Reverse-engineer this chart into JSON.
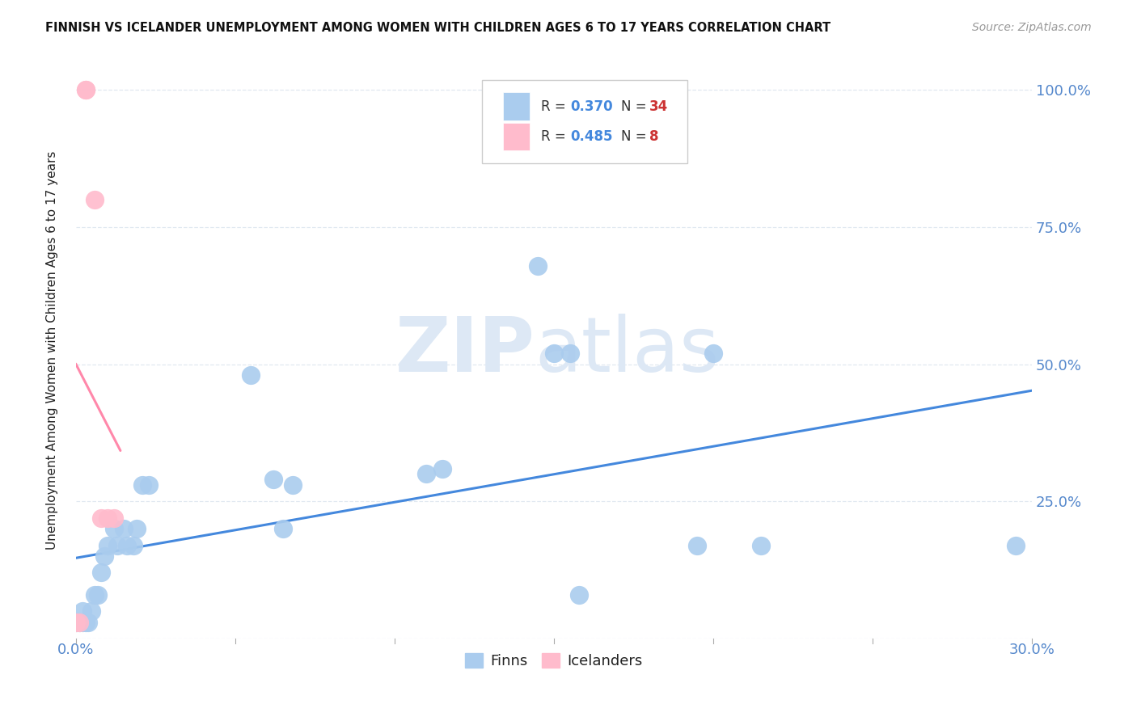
{
  "title": "FINNISH VS ICELANDER UNEMPLOYMENT AMONG WOMEN WITH CHILDREN AGES 6 TO 17 YEARS CORRELATION CHART",
  "source": "Source: ZipAtlas.com",
  "ylabel": "Unemployment Among Women with Children Ages 6 to 17 years",
  "xlim": [
    0.0,
    0.3
  ],
  "ylim": [
    0.0,
    1.05
  ],
  "xticks": [
    0.0,
    0.05,
    0.1,
    0.15,
    0.2,
    0.25,
    0.3
  ],
  "xticklabels": [
    "0.0%",
    "",
    "",
    "",
    "",
    "",
    "30.0%"
  ],
  "yticks": [
    0.0,
    0.25,
    0.5,
    0.75,
    1.0
  ],
  "yticklabels": [
    "",
    "25.0%",
    "50.0%",
    "75.0%",
    "100.0%"
  ],
  "finns_x": [
    0.0,
    0.001,
    0.002,
    0.002,
    0.003,
    0.004,
    0.005,
    0.006,
    0.007,
    0.008,
    0.009,
    0.01,
    0.012,
    0.013,
    0.015,
    0.016,
    0.018,
    0.019,
    0.021,
    0.023,
    0.055,
    0.062,
    0.065,
    0.068,
    0.11,
    0.115,
    0.145,
    0.15,
    0.155,
    0.158,
    0.195,
    0.2,
    0.215,
    0.295
  ],
  "finns_y": [
    0.03,
    0.03,
    0.05,
    0.03,
    0.03,
    0.03,
    0.05,
    0.08,
    0.08,
    0.12,
    0.15,
    0.17,
    0.2,
    0.17,
    0.2,
    0.17,
    0.17,
    0.2,
    0.28,
    0.28,
    0.48,
    0.29,
    0.2,
    0.28,
    0.3,
    0.31,
    0.68,
    0.52,
    0.52,
    0.08,
    0.17,
    0.52,
    0.17,
    0.17
  ],
  "icelanders_x": [
    0.0,
    0.001,
    0.003,
    0.003,
    0.006,
    0.008,
    0.01,
    0.012
  ],
  "icelanders_y": [
    0.03,
    0.03,
    1.0,
    1.0,
    0.8,
    0.22,
    0.22,
    0.22
  ],
  "finn_color": "#aaccee",
  "icelander_color": "#ffbbcc",
  "finn_line_color": "#4488dd",
  "icelander_line_color": "#ff88aa",
  "finn_R": 0.37,
  "finn_N": 34,
  "icelander_R": 0.485,
  "icelander_N": 8,
  "watermark_color": "#dde8f5",
  "background_color": "#ffffff",
  "grid_color": "#e0e8f0",
  "label_color": "#5588cc",
  "text_color": "#222222"
}
